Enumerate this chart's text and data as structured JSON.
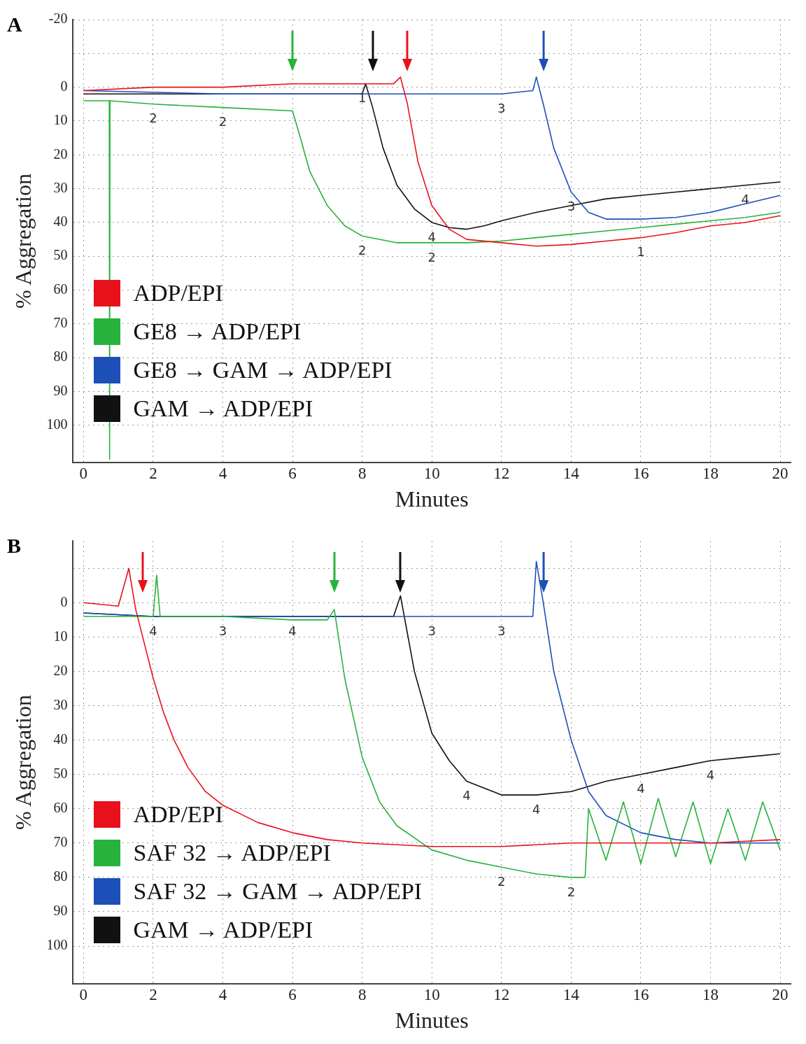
{
  "chart_data": [
    {
      "type": "line",
      "title": "A",
      "xlabel": "Minutes",
      "ylabel": "% Aggregation",
      "xlim": [
        -0.3,
        20.3
      ],
      "xticks": [
        0,
        2,
        4,
        6,
        8,
        10,
        12,
        14,
        16,
        18,
        20
      ],
      "ylim": [
        111,
        -20
      ],
      "yticks": [
        -20,
        {
          "value": -10,
          "label": null
        },
        0,
        10,
        20,
        30,
        40,
        50,
        60,
        70,
        80,
        90,
        100
      ],
      "grid": true,
      "legend": "bottom left",
      "marker": "none",
      "line_style": "solid",
      "series": [
        {
          "name": "ADP/EPI",
          "color": "#e8111b",
          "x": [
            0,
            2,
            4,
            6,
            8,
            8.9,
            9.1,
            9.3,
            9.6,
            10,
            10.5,
            11,
            12,
            13,
            14,
            15,
            16,
            17,
            18,
            19,
            20
          ],
          "values": [
            1,
            0,
            0,
            -1,
            -1,
            -1,
            -3,
            5,
            22,
            35,
            42,
            45,
            46,
            47,
            46.5,
            45.5,
            44.5,
            43,
            41,
            40,
            38
          ]
        },
        {
          "name": "GE8 → ADP/EPI",
          "color": "#27b23c",
          "x": [
            0,
            0.74,
            0.75,
            0.76,
            2,
            4,
            6,
            6.2,
            6.5,
            7,
            7.5,
            8,
            9,
            10,
            11,
            12,
            13,
            14,
            15,
            16,
            17,
            18,
            19,
            20
          ],
          "values": [
            4,
            4,
            110,
            4,
            5,
            6,
            7,
            14,
            25,
            35,
            41,
            44,
            46,
            46,
            46,
            45.5,
            44.5,
            43.5,
            42.5,
            41.5,
            40.5,
            39.5,
            38.5,
            37
          ]
        },
        {
          "name": "GE8 → GAM → ADP/EPI",
          "color": "#1c4fb8",
          "x": [
            0,
            4,
            8,
            12,
            12.9,
            13,
            13.2,
            13.5,
            14,
            14.5,
            15,
            16,
            17,
            18,
            19,
            20
          ],
          "values": [
            1,
            2,
            2,
            2,
            1,
            -3,
            5,
            18,
            31,
            37,
            39,
            39,
            38.5,
            37,
            34.5,
            32
          ]
        },
        {
          "name": "GAM → ADP/EPI",
          "color": "#111111",
          "x": [
            0,
            2,
            4,
            6,
            8,
            8.1,
            8.3,
            8.6,
            9,
            9.5,
            10,
            10.5,
            11,
            11.5,
            12,
            13,
            14,
            15,
            16,
            17,
            18,
            19,
            20
          ],
          "values": [
            2,
            2,
            2,
            2,
            2,
            -1,
            6,
            18,
            29,
            36,
            40,
            41.5,
            42,
            41,
            39.5,
            37,
            35,
            33,
            32,
            31,
            30,
            29,
            28
          ]
        }
      ],
      "annotations": [
        {
          "text": "2",
          "x": 2,
          "y": 5
        },
        {
          "text": "2",
          "x": 4,
          "y": 6
        },
        {
          "text": "1",
          "x": 8,
          "y": -1
        },
        {
          "text": "3",
          "x": 12,
          "y": 2
        },
        {
          "text": "2",
          "x": 8,
          "y": 44
        },
        {
          "text": "2",
          "x": 10,
          "y": 46
        },
        {
          "text": "4",
          "x": 10,
          "y": 40
        },
        {
          "text": "3",
          "x": 14,
          "y": 31
        },
        {
          "text": "1",
          "x": 16,
          "y": 44.5
        },
        {
          "text": "4",
          "x": 19,
          "y": 29
        }
      ]
    },
    {
      "type": "line",
      "title": "B",
      "xlabel": "Minutes",
      "ylabel": "% Aggregation",
      "xlim": [
        -0.3,
        20.3
      ],
      "xticks": [
        0,
        2,
        4,
        6,
        8,
        10,
        12,
        14,
        16,
        18,
        20
      ],
      "ylim": [
        111,
        -18
      ],
      "yticks": [
        {
          "value": -10,
          "label": null
        },
        0,
        10,
        20,
        30,
        40,
        50,
        60,
        70,
        80,
        90,
        100
      ],
      "grid": true,
      "legend": "bottom left",
      "marker": "none",
      "line_style": "solid",
      "series": [
        {
          "name": "ADP/EPI",
          "color": "#e8111b",
          "x": [
            0,
            1,
            1.3,
            1.5,
            1.7,
            2,
            2.3,
            2.6,
            3,
            3.5,
            4,
            5,
            6,
            7,
            8,
            10,
            12,
            14,
            16,
            18,
            20
          ],
          "values": [
            0,
            1,
            -10,
            2,
            10,
            22,
            32,
            40,
            48,
            55,
            59,
            64,
            67,
            69,
            70,
            71,
            71,
            70,
            70,
            70,
            69
          ]
        },
        {
          "name": "SAF 32 → ADP/EPI",
          "color": "#27b23c",
          "x": [
            0,
            2,
            2.1,
            2.2,
            4,
            6,
            7,
            7.2,
            7.5,
            8,
            8.5,
            9,
            10,
            11,
            12,
            13,
            14,
            14.4,
            14.5,
            15,
            15.5,
            16,
            16.5,
            17,
            17.5,
            18,
            18.5,
            19,
            19.5,
            20
          ],
          "values": [
            4,
            4,
            -8,
            4,
            4,
            5,
            5,
            2,
            22,
            45,
            58,
            65,
            72,
            75,
            77,
            79,
            80,
            80,
            60,
            75,
            58,
            76,
            57,
            74,
            58,
            76,
            60,
            75,
            58,
            72
          ]
        },
        {
          "name": "SAF 32 → GAM → ADP/EPI",
          "color": "#1c4fb8",
          "x": [
            0,
            2,
            4,
            6,
            8,
            10,
            12,
            12.9,
            13,
            13.2,
            13.5,
            14,
            14.5,
            15,
            16,
            17,
            18,
            20
          ],
          "values": [
            3,
            4,
            4,
            4,
            4,
            4,
            4,
            4,
            -12,
            0,
            20,
            40,
            55,
            62,
            67,
            69,
            70,
            70
          ]
        },
        {
          "name": "GAM → ADP/EPI",
          "color": "#111111",
          "x": [
            0,
            2,
            4,
            6,
            8,
            8.9,
            9.1,
            9.5,
            10,
            10.5,
            11,
            12,
            13,
            14,
            15,
            16,
            17,
            18,
            19,
            20
          ],
          "values": [
            3,
            4,
            4,
            4,
            4,
            4,
            -2,
            20,
            38,
            46,
            52,
            56,
            56,
            55,
            52,
            50,
            48,
            46,
            45,
            44
          ]
        }
      ],
      "annotations": [
        {
          "text": "4",
          "x": 2,
          "y": 4
        },
        {
          "text": "3",
          "x": 4,
          "y": 4
        },
        {
          "text": "4",
          "x": 6,
          "y": 4
        },
        {
          "text": "3",
          "x": 10,
          "y": 4
        },
        {
          "text": "3",
          "x": 12,
          "y": 4
        },
        {
          "text": "4",
          "x": 11,
          "y": 52
        },
        {
          "text": "4",
          "x": 13,
          "y": 56
        },
        {
          "text": "2",
          "x": 12,
          "y": 77
        },
        {
          "text": "2",
          "x": 14,
          "y": 80
        },
        {
          "text": "4",
          "x": 16,
          "y": 50
        },
        {
          "text": "4",
          "x": 18,
          "y": 46
        }
      ]
    }
  ]
}
